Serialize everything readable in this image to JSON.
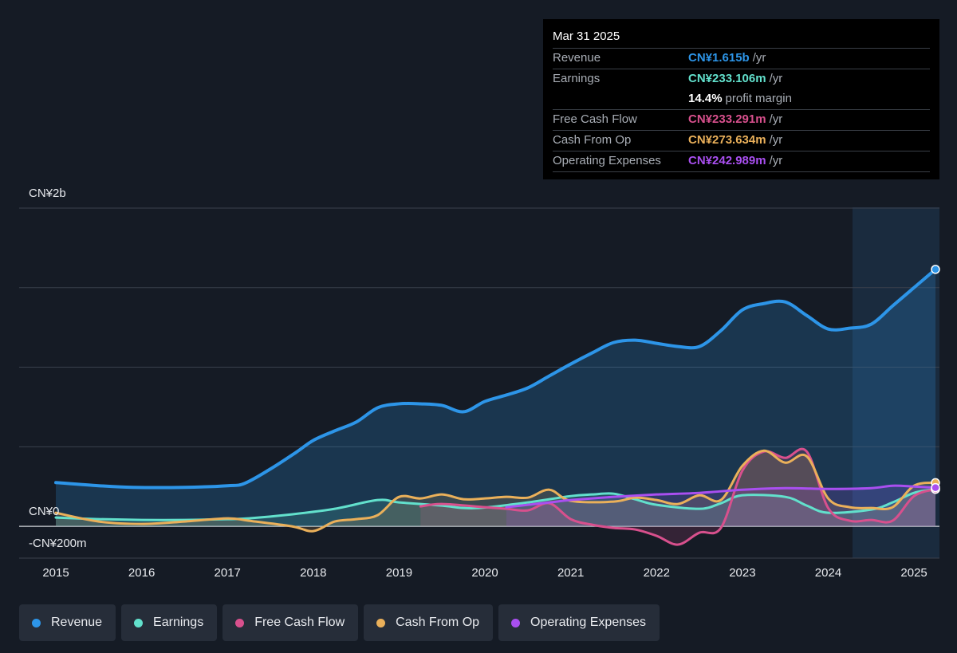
{
  "tooltip": {
    "date": "Mar 31 2025",
    "rows": [
      {
        "label": "Revenue",
        "value": "CN¥1.615b",
        "unit": "/yr",
        "color": "#2d95e8"
      },
      {
        "label": "Earnings",
        "value": "CN¥233.106m",
        "unit": "/yr",
        "color": "#62e0cc"
      },
      {
        "label": "",
        "value": "14.4%",
        "unit": "profit margin",
        "color": "#ffffff"
      },
      {
        "label": "Free Cash Flow",
        "value": "CN¥233.291m",
        "unit": "/yr",
        "color": "#d8508d"
      },
      {
        "label": "Cash From Op",
        "value": "CN¥273.634m",
        "unit": "/yr",
        "color": "#eab05a"
      },
      {
        "label": "Operating Expenses",
        "value": "CN¥242.989m",
        "unit": "/yr",
        "color": "#a94ff0"
      }
    ]
  },
  "legend": [
    {
      "label": "Revenue",
      "color": "#2d95e8"
    },
    {
      "label": "Earnings",
      "color": "#62e0cc"
    },
    {
      "label": "Free Cash Flow",
      "color": "#d8508d"
    },
    {
      "label": "Cash From Op",
      "color": "#eab05a"
    },
    {
      "label": "Operating Expenses",
      "color": "#a94ff0"
    }
  ],
  "chart_data": {
    "type": "area",
    "y_unit": "CN¥ millions",
    "ylim": [
      -200,
      2000
    ],
    "xlim": [
      2015,
      2025.25
    ],
    "y_tick_labels": [
      {
        "value": 2000,
        "label": "CN¥2b"
      },
      {
        "value": 0,
        "label": "CN¥0"
      },
      {
        "value": -200,
        "label": "-CN¥200m"
      }
    ],
    "x_ticks": [
      2015,
      2016,
      2017,
      2018,
      2019,
      2020,
      2021,
      2022,
      2023,
      2024,
      2025
    ],
    "x_tick_labels": [
      "2015",
      "2016",
      "2017",
      "2018",
      "2019",
      "2020",
      "2021",
      "2022",
      "2023",
      "2024",
      "2025"
    ],
    "gridlines": [
      2000,
      1500,
      1000,
      500,
      0,
      -200
    ],
    "highlight_from": 2024.25,
    "series": [
      {
        "name": "Revenue",
        "color": "#2d95e8",
        "fill": true,
        "points": [
          [
            2015,
            275
          ],
          [
            2015.5,
            255
          ],
          [
            2015.9,
            245
          ],
          [
            2016.5,
            245
          ],
          [
            2017,
            255
          ],
          [
            2017.2,
            270
          ],
          [
            2017.5,
            360
          ],
          [
            2017.8,
            465
          ],
          [
            2018,
            540
          ],
          [
            2018.25,
            600
          ],
          [
            2018.5,
            655
          ],
          [
            2018.75,
            745
          ],
          [
            2019,
            770
          ],
          [
            2019.25,
            770
          ],
          [
            2019.5,
            760
          ],
          [
            2019.75,
            720
          ],
          [
            2020,
            785
          ],
          [
            2020.25,
            825
          ],
          [
            2020.5,
            870
          ],
          [
            2020.75,
            945
          ],
          [
            2021,
            1020
          ],
          [
            2021.25,
            1090
          ],
          [
            2021.5,
            1155
          ],
          [
            2021.75,
            1170
          ],
          [
            2022,
            1150
          ],
          [
            2022.25,
            1130
          ],
          [
            2022.5,
            1130
          ],
          [
            2022.75,
            1230
          ],
          [
            2023,
            1360
          ],
          [
            2023.25,
            1400
          ],
          [
            2023.5,
            1410
          ],
          [
            2023.75,
            1325
          ],
          [
            2024,
            1240
          ],
          [
            2024.25,
            1245
          ],
          [
            2024.5,
            1270
          ],
          [
            2024.75,
            1385
          ],
          [
            2025,
            1500
          ],
          [
            2025.25,
            1615
          ]
        ]
      },
      {
        "name": "Earnings",
        "color": "#62e0cc",
        "fill": true,
        "points": [
          [
            2015,
            55
          ],
          [
            2015.5,
            45
          ],
          [
            2016,
            40
          ],
          [
            2016.5,
            40
          ],
          [
            2017,
            45
          ],
          [
            2017.25,
            50
          ],
          [
            2017.75,
            75
          ],
          [
            2018.25,
            110
          ],
          [
            2018.75,
            165
          ],
          [
            2019,
            150
          ],
          [
            2019.5,
            130
          ],
          [
            2019.75,
            115
          ],
          [
            2020,
            118
          ],
          [
            2020.5,
            150
          ],
          [
            2021,
            190
          ],
          [
            2021.25,
            200
          ],
          [
            2021.5,
            205
          ],
          [
            2021.75,
            170
          ],
          [
            2022,
            135
          ],
          [
            2022.5,
            110
          ],
          [
            2022.75,
            145
          ],
          [
            2023,
            195
          ],
          [
            2023.5,
            185
          ],
          [
            2023.75,
            130
          ],
          [
            2024,
            85
          ],
          [
            2024.5,
            105
          ],
          [
            2024.75,
            150
          ],
          [
            2025,
            210
          ],
          [
            2025.25,
            233
          ]
        ]
      },
      {
        "name": "Free Cash Flow",
        "color": "#d8508d",
        "fill": true,
        "start": 2019.25,
        "points": [
          [
            2019.25,
            125
          ],
          [
            2019.5,
            140
          ],
          [
            2020,
            120
          ],
          [
            2020.25,
            110
          ],
          [
            2020.5,
            100
          ],
          [
            2020.75,
            145
          ],
          [
            2021,
            45
          ],
          [
            2021.25,
            10
          ],
          [
            2021.5,
            -10
          ],
          [
            2021.75,
            -20
          ],
          [
            2022,
            -60
          ],
          [
            2022.25,
            -115
          ],
          [
            2022.5,
            -40
          ],
          [
            2022.75,
            -10
          ],
          [
            2023,
            350
          ],
          [
            2023.25,
            470
          ],
          [
            2023.5,
            430
          ],
          [
            2023.75,
            470
          ],
          [
            2024,
            115
          ],
          [
            2024.25,
            35
          ],
          [
            2024.5,
            40
          ],
          [
            2024.75,
            35
          ],
          [
            2025,
            190
          ],
          [
            2025.25,
            233
          ]
        ]
      },
      {
        "name": "Cash From Op",
        "color": "#eab05a",
        "fill": true,
        "points": [
          [
            2015,
            85
          ],
          [
            2015.5,
            30
          ],
          [
            2016,
            15
          ],
          [
            2016.5,
            30
          ],
          [
            2017,
            50
          ],
          [
            2017.25,
            35
          ],
          [
            2017.75,
            0
          ],
          [
            2018,
            -30
          ],
          [
            2018.25,
            30
          ],
          [
            2018.5,
            45
          ],
          [
            2018.75,
            70
          ],
          [
            2019,
            185
          ],
          [
            2019.25,
            175
          ],
          [
            2019.5,
            200
          ],
          [
            2019.75,
            170
          ],
          [
            2020,
            175
          ],
          [
            2020.25,
            185
          ],
          [
            2020.5,
            180
          ],
          [
            2020.75,
            230
          ],
          [
            2021,
            160
          ],
          [
            2021.5,
            155
          ],
          [
            2021.75,
            180
          ],
          [
            2022,
            165
          ],
          [
            2022.25,
            140
          ],
          [
            2022.5,
            195
          ],
          [
            2022.75,
            165
          ],
          [
            2023,
            380
          ],
          [
            2023.25,
            475
          ],
          [
            2023.5,
            400
          ],
          [
            2023.75,
            440
          ],
          [
            2024,
            175
          ],
          [
            2024.25,
            120
          ],
          [
            2024.5,
            115
          ],
          [
            2024.75,
            120
          ],
          [
            2025,
            255
          ],
          [
            2025.25,
            274
          ]
        ]
      },
      {
        "name": "Operating Expenses",
        "color": "#a94ff0",
        "fill": true,
        "start": 2020.25,
        "points": [
          [
            2020.25,
            120
          ],
          [
            2020.75,
            150
          ],
          [
            2021,
            165
          ],
          [
            2021.5,
            185
          ],
          [
            2022,
            200
          ],
          [
            2022.5,
            210
          ],
          [
            2023,
            230
          ],
          [
            2023.5,
            240
          ],
          [
            2024,
            235
          ],
          [
            2024.5,
            240
          ],
          [
            2024.75,
            255
          ],
          [
            2025,
            250
          ],
          [
            2025.25,
            243
          ]
        ]
      }
    ]
  }
}
